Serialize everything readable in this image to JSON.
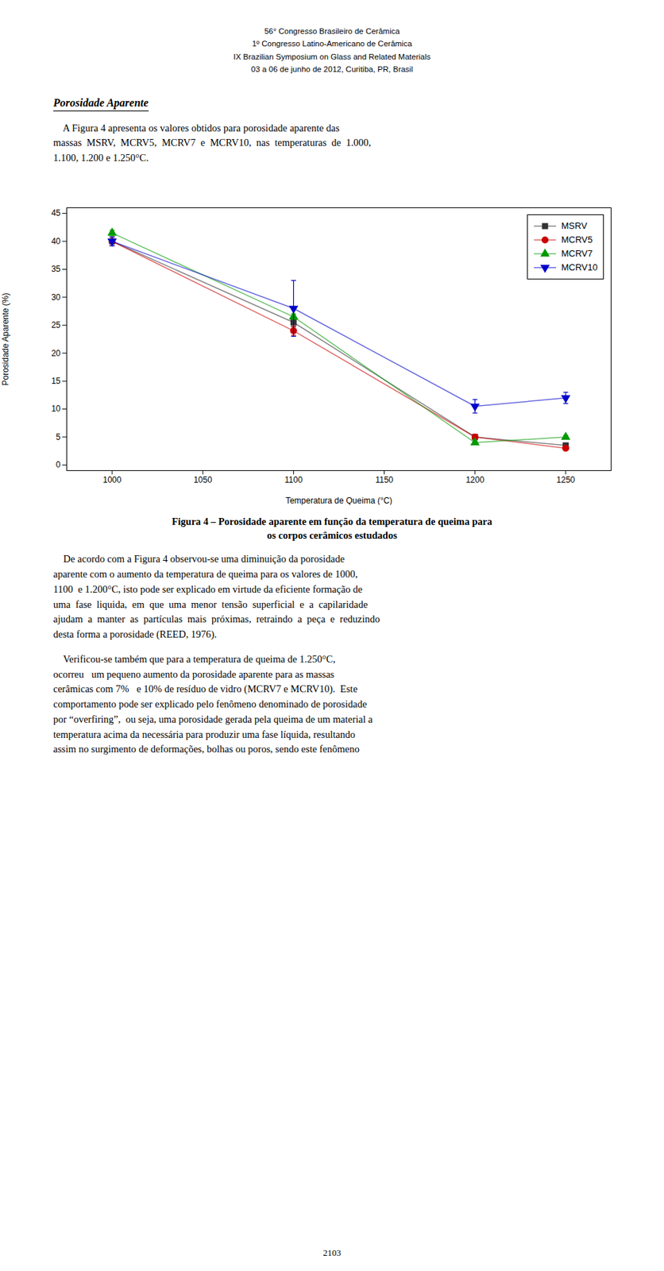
{
  "header_lines": [
    "56° Congresso Brasileiro de Cerâmica",
    "1º Congresso Latino-Americano de Cerâmica",
    "IX Brazilian Symposium on Glass and Related Materials",
    "03 a 06 de junho de 2012, Curitiba, PR, Brasil"
  ],
  "section_title": "Porosidade Aparente",
  "body_before_chart": [
    "    A Figura 4 apresenta os valores obtidos para porosidade aparente das\nmassas  MSRV,  MCRV5,  MCRV7  e  MCRV10,  nas  temperaturas  de  1.000,\n1.100, 1.200 e 1.250°C."
  ],
  "caption": [
    "Figura 4 – Porosidade aparente em função da temperatura de queima para",
    "os corpos cerâmicos estudados"
  ],
  "body_after_chart": [
    "    De acordo com a Figura 4 observou-se uma diminuição da porosidade\naparente com o aumento da temperatura de queima para os valores de 1000,\n1100  e 1.200°C, isto pode ser explicado em virtude da eficiente formação de\numa  fase  liquida,  em  que  uma  menor  tensão  superficial  e  a  capilaridade\najudam  a  manter  as  partículas  mais  próximas,  retraindo  a  peça  e  reduzindo\ndesta forma a porosidade (REED, 1976).",
    "    Verificou-se também que para a temperatura de queima de 1.250°C,\nocorreu   um pequeno aumento da porosidade aparente para as massas\ncerâmicas com 7%   e 10% de resíduo de vidro (MCRV7 e MCRV10).  Este\ncomportamento pode ser explicado pelo fenômeno denominado de porosidade\npor “overfiring”,  ou seja, uma porosidade gerada pela queima de um material a\ntemperatura acima da necessária para produzir uma fase líquida, resultando\nassim no surgimento de deformações, bolhas ou poros, sendo este fenômeno"
  ],
  "page_number": "2103",
  "chart_data": {
    "type": "line",
    "xlabel": "Temperatura de Queima (°C)",
    "ylabel": "Porosidade Aparente (%)",
    "x": [
      1000,
      1100,
      1200,
      1250
    ],
    "xlim": [
      975,
      1275
    ],
    "ylim": [
      -1,
      46
    ],
    "xticks": [
      1000,
      1050,
      1100,
      1150,
      1200,
      1250
    ],
    "yticks": [
      0,
      5,
      10,
      15,
      20,
      25,
      30,
      35,
      40,
      45
    ],
    "grid": false,
    "legend": "upper right",
    "series": [
      {
        "name": "MSRV",
        "color": "#333333",
        "marker": "square",
        "values": [
          40.0,
          25.5,
          5.0,
          3.5
        ],
        "yerr": [
          0.8,
          0.8,
          0.3,
          0.3
        ]
      },
      {
        "name": "MCRV5",
        "color": "#cc0000",
        "marker": "circle",
        "values": [
          40.0,
          24.0,
          5.0,
          3.0
        ],
        "yerr": [
          0.8,
          0.8,
          0.3,
          0.3
        ]
      },
      {
        "name": "MCRV7",
        "color": "#009900",
        "marker": "triangle-up",
        "values": [
          41.5,
          26.5,
          4.0,
          5.0
        ],
        "yerr": [
          0.5,
          0.5,
          0.3,
          0.3
        ]
      },
      {
        "name": "MCRV10",
        "color": "#0000cc",
        "marker": "triangle-down",
        "values": [
          40.0,
          28.0,
          10.5,
          12.0
        ],
        "yerr": [
          0.8,
          5.0,
          1.2,
          1.0
        ]
      }
    ]
  }
}
